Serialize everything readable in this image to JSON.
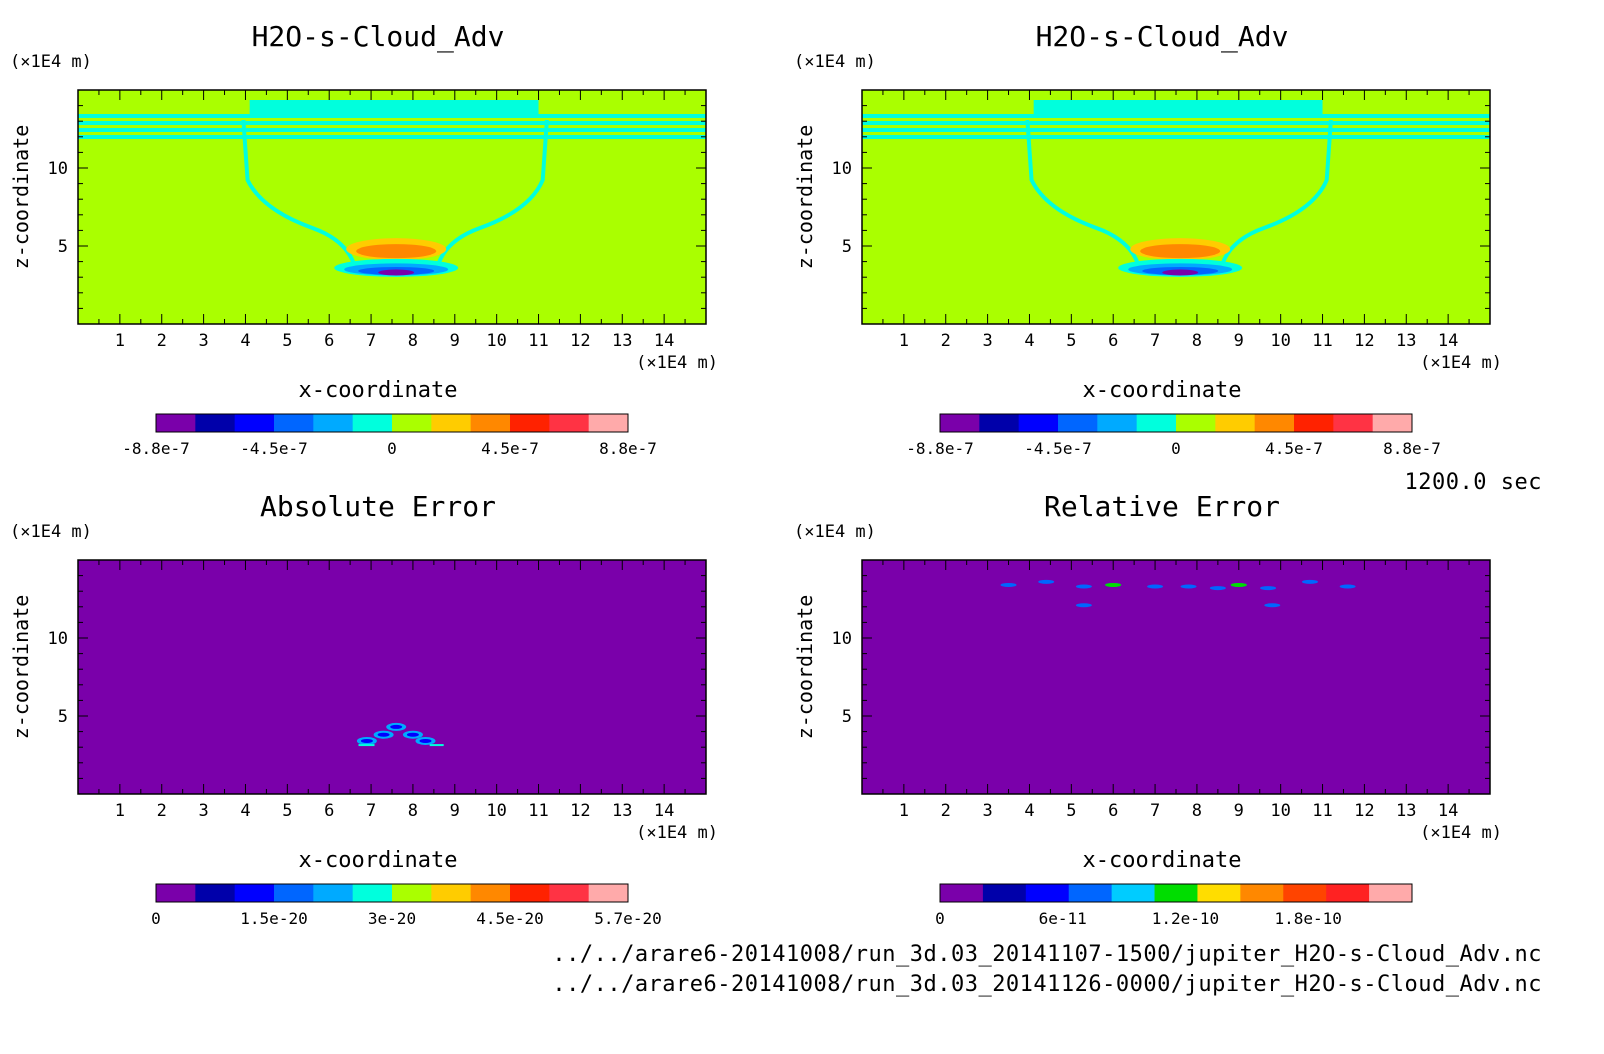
{
  "time_label": "1200.0 sec",
  "files": [
    "../../arare6-20141008/run_3d.03_20141107-1500/jupiter_H2O-s-Cloud_Adv.nc",
    "../../arare6-20141008/run_3d.03_20141126-0000/jupiter_H2O-s-Cloud_Adv.nc"
  ],
  "colors": {
    "field_background": "#aaff00",
    "cyan_band": "#00ffdd",
    "error_background": "#7a00aa"
  },
  "chart_data": [
    {
      "type": "heatmap",
      "title": "H2O-s-Cloud_Adv",
      "xlabel": "x-coordinate",
      "ylabel": "z-coordinate",
      "x_unit": "(×1E4 m)",
      "y_unit": "(×1E4 m)",
      "xlim": [
        0,
        15
      ],
      "ylim": [
        0,
        15
      ],
      "xticks": [
        1,
        2,
        3,
        4,
        5,
        6,
        7,
        8,
        9,
        10,
        11,
        12,
        13,
        14
      ],
      "yticks": [
        5,
        10
      ],
      "colorbar": {
        "colors": [
          "#7a00aa",
          "#0000aa",
          "#0000ff",
          "#0066ff",
          "#00aaff",
          "#00ffdd",
          "#aaff00",
          "#ffcc00",
          "#ff8800",
          "#ff2200",
          "#ff3344",
          "#ffaaaa"
        ],
        "tick_labels": [
          "-8.8e-7",
          "-4.5e-7",
          "0",
          "4.5e-7",
          "8.8e-7"
        ]
      }
    },
    {
      "type": "heatmap",
      "title": "H2O-s-Cloud_Adv",
      "xlabel": "x-coordinate",
      "ylabel": "z-coordinate",
      "x_unit": "(×1E4 m)",
      "y_unit": "(×1E4 m)",
      "xlim": [
        0,
        15
      ],
      "ylim": [
        0,
        15
      ],
      "xticks": [
        1,
        2,
        3,
        4,
        5,
        6,
        7,
        8,
        9,
        10,
        11,
        12,
        13,
        14
      ],
      "yticks": [
        5,
        10
      ],
      "colorbar": {
        "colors": [
          "#7a00aa",
          "#0000aa",
          "#0000ff",
          "#0066ff",
          "#00aaff",
          "#00ffdd",
          "#aaff00",
          "#ffcc00",
          "#ff8800",
          "#ff2200",
          "#ff3344",
          "#ffaaaa"
        ],
        "tick_labels": [
          "-8.8e-7",
          "-4.5e-7",
          "0",
          "4.5e-7",
          "8.8e-7"
        ]
      }
    },
    {
      "type": "heatmap",
      "title": "Absolute Error",
      "xlabel": "x-coordinate",
      "ylabel": "z-coordinate",
      "x_unit": "(×1E4 m)",
      "y_unit": "(×1E4 m)",
      "xlim": [
        0,
        15
      ],
      "ylim": [
        0,
        15
      ],
      "xticks": [
        1,
        2,
        3,
        4,
        5,
        6,
        7,
        8,
        9,
        10,
        11,
        12,
        13,
        14
      ],
      "yticks": [
        5,
        10
      ],
      "colorbar": {
        "colors": [
          "#7a00aa",
          "#0000aa",
          "#0000ff",
          "#0066ff",
          "#00aaff",
          "#00ffdd",
          "#aaff00",
          "#ffcc00",
          "#ff8800",
          "#ff2200",
          "#ff3344",
          "#ffaaaa"
        ],
        "tick_labels": [
          "0",
          "1.5e-20",
          "3e-20",
          "4.5e-20",
          "5.7e-20"
        ]
      }
    },
    {
      "type": "heatmap",
      "title": "Relative Error",
      "xlabel": "x-coordinate",
      "ylabel": "z-coordinate",
      "x_unit": "(×1E4 m)",
      "y_unit": "(×1E4 m)",
      "xlim": [
        0,
        15
      ],
      "ylim": [
        0,
        15
      ],
      "xticks": [
        1,
        2,
        3,
        4,
        5,
        6,
        7,
        8,
        9,
        10,
        11,
        12,
        13,
        14
      ],
      "yticks": [
        5,
        10
      ],
      "colorbar": {
        "colors": [
          "#7a00aa",
          "#0000aa",
          "#0000ff",
          "#0066ff",
          "#00ccff",
          "#00dd00",
          "#ffdd00",
          "#ff8800",
          "#ff4400",
          "#ff2222",
          "#ffaaaa"
        ],
        "tick_labels": [
          "0",
          "6e-11",
          "1.2e-10",
          "1.8e-10"
        ]
      }
    }
  ]
}
